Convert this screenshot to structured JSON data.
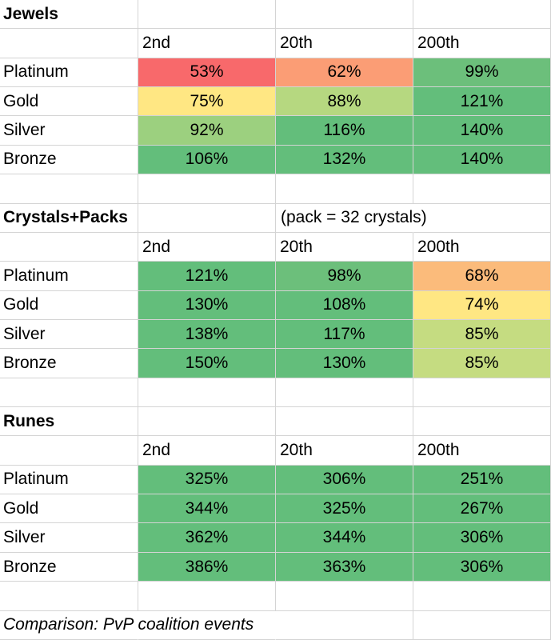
{
  "sections": [
    {
      "title": "Jewels",
      "note": "",
      "columns": [
        "2nd",
        "20th",
        "200th"
      ],
      "rows": [
        {
          "label": "Platinum",
          "values": [
            "53%",
            "62%",
            "99%"
          ],
          "colors": [
            "#f8696b",
            "#fb9d75",
            "#6cbf7b"
          ]
        },
        {
          "label": "Gold",
          "values": [
            "75%",
            "88%",
            "121%"
          ],
          "colors": [
            "#ffe783",
            "#b6d880",
            "#63be7b"
          ]
        },
        {
          "label": "Silver",
          "values": [
            "92%",
            "116%",
            "140%"
          ],
          "colors": [
            "#9cd07f",
            "#63be7b",
            "#63be7b"
          ]
        },
        {
          "label": "Bronze",
          "values": [
            "106%",
            "132%",
            "140%"
          ],
          "colors": [
            "#63be7b",
            "#63be7b",
            "#63be7b"
          ]
        }
      ]
    },
    {
      "title": "Crystals+Packs",
      "note": "(pack = 32 crystals)",
      "columns": [
        "2nd",
        "20th",
        "200th"
      ],
      "rows": [
        {
          "label": "Platinum",
          "values": [
            "121%",
            "98%",
            "68%"
          ],
          "colors": [
            "#63be7b",
            "#6cbf7b",
            "#fbbb7b"
          ]
        },
        {
          "label": "Gold",
          "values": [
            "130%",
            "108%",
            "74%"
          ],
          "colors": [
            "#63be7b",
            "#63be7b",
            "#ffe783"
          ]
        },
        {
          "label": "Silver",
          "values": [
            "138%",
            "117%",
            "85%"
          ],
          "colors": [
            "#63be7b",
            "#63be7b",
            "#c5dc81"
          ]
        },
        {
          "label": "Bronze",
          "values": [
            "150%",
            "130%",
            "85%"
          ],
          "colors": [
            "#63be7b",
            "#63be7b",
            "#c5dc81"
          ]
        }
      ]
    },
    {
      "title": "Runes",
      "note": "",
      "columns": [
        "2nd",
        "20th",
        "200th"
      ],
      "rows": [
        {
          "label": "Platinum",
          "values": [
            "325%",
            "306%",
            "251%"
          ],
          "colors": [
            "#63be7b",
            "#63be7b",
            "#63be7b"
          ]
        },
        {
          "label": "Gold",
          "values": [
            "344%",
            "325%",
            "267%"
          ],
          "colors": [
            "#63be7b",
            "#63be7b",
            "#63be7b"
          ]
        },
        {
          "label": "Silver",
          "values": [
            "362%",
            "344%",
            "306%"
          ],
          "colors": [
            "#63be7b",
            "#63be7b",
            "#63be7b"
          ]
        },
        {
          "label": "Bronze",
          "values": [
            "386%",
            "363%",
            "306%"
          ],
          "colors": [
            "#63be7b",
            "#63be7b",
            "#63be7b"
          ]
        }
      ]
    }
  ],
  "footer": "Comparison: PvP coalition events"
}
